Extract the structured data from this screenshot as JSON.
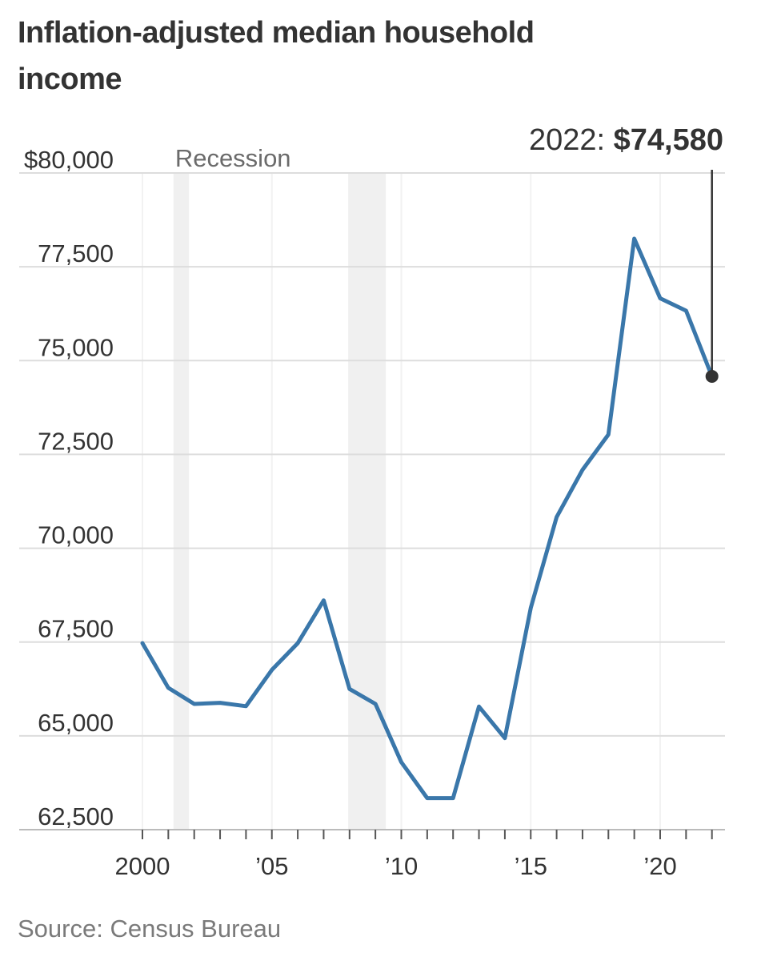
{
  "chart_data": {
    "type": "line",
    "title": "Inflation-adjusted median household income",
    "source": "Source: Census Bureau",
    "xlabel": "",
    "ylabel": "",
    "xlim": [
      1999.5,
      2022.3
    ],
    "ylim": [
      62500,
      80000
    ],
    "y_ticks": [
      62500,
      65000,
      67500,
      70000,
      72500,
      75000,
      77500,
      80000
    ],
    "y_tick_labels": [
      "62,500",
      "65,000",
      "67,500",
      "70,000",
      "72,500",
      "75,000",
      "77,500",
      "$80,000"
    ],
    "x_ticks": [
      2000,
      2005,
      2010,
      2015,
      2020
    ],
    "x_tick_labels": [
      "2000",
      "’05",
      "’10",
      "’15",
      "’20"
    ],
    "grid": true,
    "recession_label": "Recession",
    "recessions": [
      {
        "start": 2001.2,
        "end": 2001.8
      },
      {
        "start": 2007.95,
        "end": 2009.4
      }
    ],
    "series": [
      {
        "name": "Median household income",
        "color": "#3a77aa",
        "x": [
          2000,
          2001,
          2002,
          2003,
          2004,
          2005,
          2006,
          2007,
          2008,
          2009,
          2010,
          2011,
          2012,
          2013,
          2014,
          2015,
          2016,
          2017,
          2018,
          2019,
          2020,
          2021,
          2022
        ],
        "y": [
          67470,
          66280,
          65850,
          65880,
          65790,
          66760,
          67470,
          68610,
          66250,
          65850,
          64300,
          63340,
          63340,
          65780,
          64940,
          68410,
          70830,
          72090,
          73030,
          78250,
          76660,
          76330,
          74580
        ]
      }
    ],
    "annotation": {
      "year": 2022,
      "value": 74580,
      "year_label": "2022:",
      "value_label": "$74,580"
    },
    "colors": {
      "line": "#3a77aa",
      "grid": "#dddddd",
      "recession": "#f0f0f0",
      "marker": "#333333",
      "axis": "#555555"
    }
  }
}
